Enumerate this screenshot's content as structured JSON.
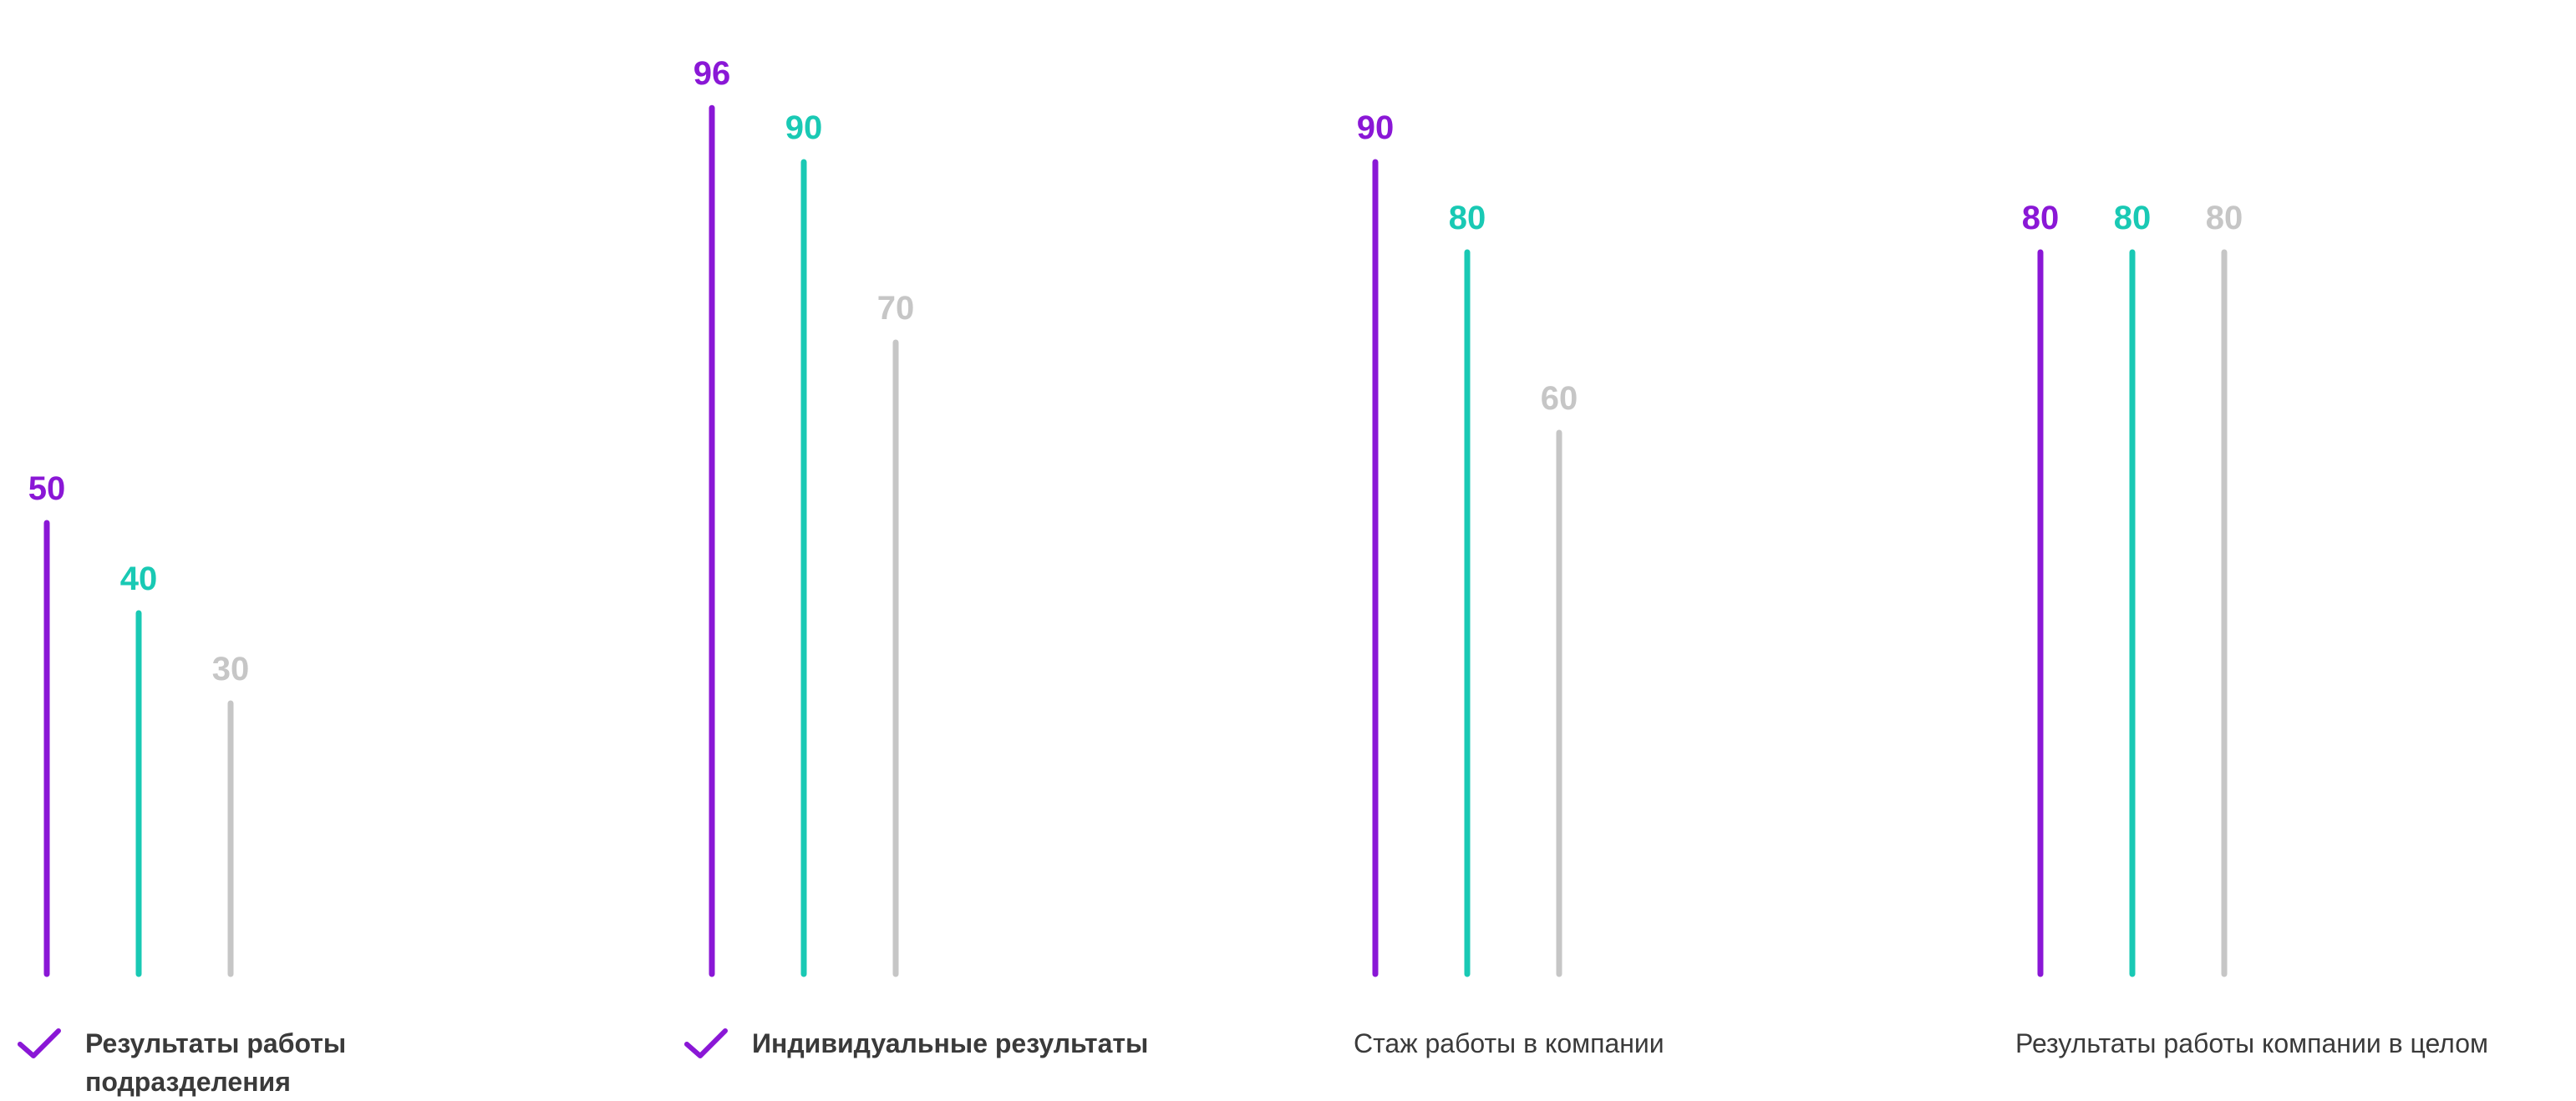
{
  "chart_data": {
    "type": "bar",
    "categories": [
      "Результаты работы подразделения",
      "Индивидуальные результаты",
      "Стаж работы в компании",
      "Результаты работы компании в целом"
    ],
    "selected": [
      true,
      true,
      false,
      false
    ],
    "series": [
      {
        "color": "#8a17d6",
        "values": [
          50,
          96,
          90,
          80
        ]
      },
      {
        "color": "#19c9b4",
        "values": [
          40,
          90,
          80,
          80
        ]
      },
      {
        "color": "#c6c6c6",
        "values": [
          30,
          70,
          60,
          80
        ]
      }
    ],
    "title": "",
    "xlabel": "",
    "ylabel": "",
    "ylim": [
      0,
      100
    ],
    "grid": false,
    "legend": "none"
  },
  "icons": {
    "selected_marker": "checkmark-icon"
  },
  "colors": {
    "check": "#8a17d6",
    "label_text": "#3a3a3a"
  }
}
